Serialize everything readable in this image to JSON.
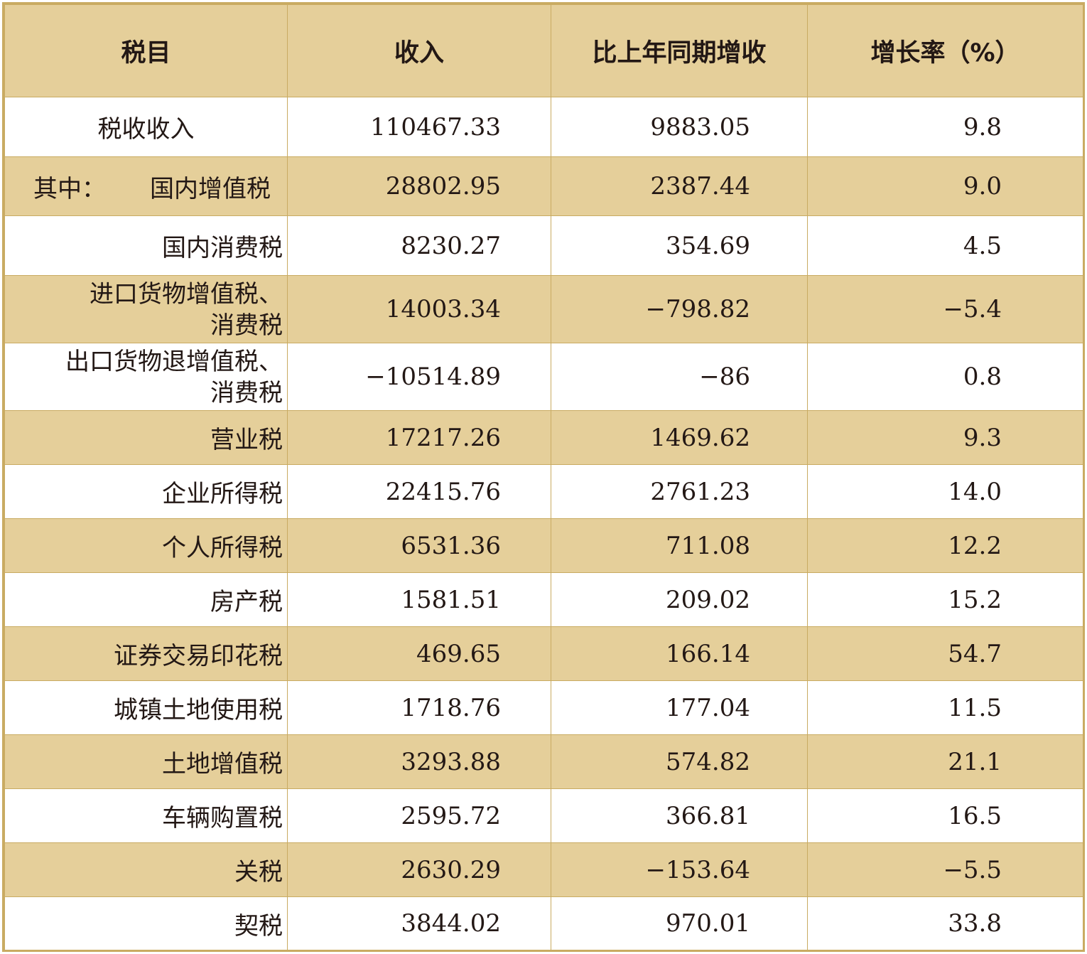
{
  "table": {
    "headers": [
      "税目",
      "收入",
      "比上年同期增收",
      "增长率（%）"
    ],
    "rows": [
      {
        "name": "税收收入",
        "income": "110467.33",
        "increase": "9883.05",
        "rate": "9.8"
      },
      {
        "prefix": "其中：",
        "name": "国内增值税",
        "income": "28802.95",
        "increase": "2387.44",
        "rate": "9.0"
      },
      {
        "name": "国内消费税",
        "income": "8230.27",
        "increase": "354.69",
        "rate": "4.5"
      },
      {
        "name_line1": "进口货物增值税、",
        "name_line2": "消费税",
        "income": "14003.34",
        "increase": "−798.82",
        "rate": "−5.4"
      },
      {
        "name_line1": "出口货物退增值税、",
        "name_line2": "消费税",
        "income": "−10514.89",
        "increase": "−86",
        "rate": "0.8"
      },
      {
        "name": "营业税",
        "income": "17217.26",
        "increase": "1469.62",
        "rate": "9.3"
      },
      {
        "name": "企业所得税",
        "income": "22415.76",
        "increase": "2761.23",
        "rate": "14.0"
      },
      {
        "name": "个人所得税",
        "income": "6531.36",
        "increase": "711.08",
        "rate": "12.2"
      },
      {
        "name": "房产税",
        "income": "1581.51",
        "increase": "209.02",
        "rate": "15.2"
      },
      {
        "name": "证券交易印花税",
        "income": "469.65",
        "increase": "166.14",
        "rate": "54.7"
      },
      {
        "name": "城镇土地使用税",
        "income": "1718.76",
        "increase": "177.04",
        "rate": "11.5"
      },
      {
        "name": "土地增值税",
        "income": "3293.88",
        "increase": "574.82",
        "rate": "21.1"
      },
      {
        "name": "车辆购置税",
        "income": "2595.72",
        "increase": "366.81",
        "rate": "16.5"
      },
      {
        "name": "关税",
        "income": "2630.29",
        "increase": "−153.64",
        "rate": "−5.5"
      },
      {
        "name": "契税",
        "income": "3844.02",
        "increase": "970.01",
        "rate": "33.8"
      }
    ]
  },
  "colors": {
    "header_bg": "#e5cf9a",
    "shaded_row_bg": "#e5cf9a",
    "border": "#c9ab62",
    "text": "#231815"
  }
}
